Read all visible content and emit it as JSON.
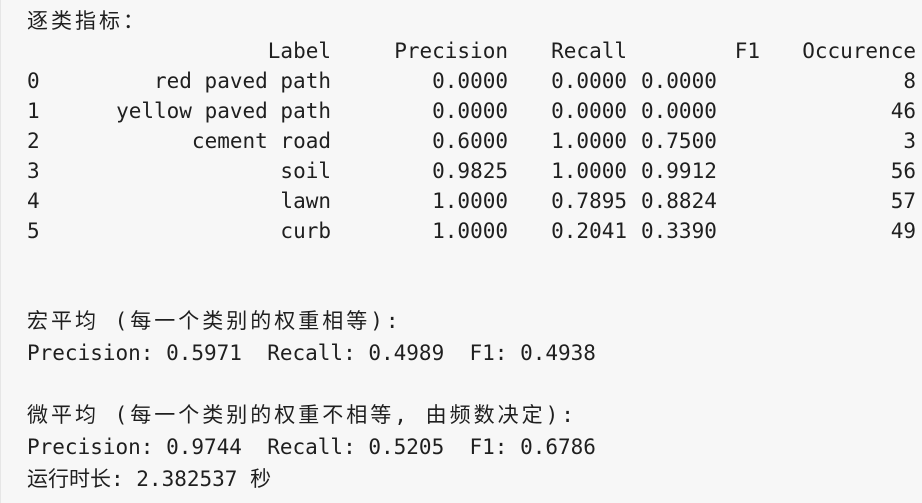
{
  "header": "逐类指标：",
  "table": {
    "columns": [
      "",
      "Label",
      "Precision",
      "Recall",
      "F1",
      "Occurence"
    ],
    "rows": [
      {
        "idx": "0",
        "label": "red paved path",
        "precision": "0.0000",
        "recall": "0.0000",
        "f1": "0.0000",
        "occurence": "8"
      },
      {
        "idx": "1",
        "label": "yellow paved path",
        "precision": "0.0000",
        "recall": "0.0000",
        "f1": "0.0000",
        "occurence": "46"
      },
      {
        "idx": "2",
        "label": "cement road",
        "precision": "0.6000",
        "recall": "1.0000",
        "f1": "0.7500",
        "occurence": "3"
      },
      {
        "idx": "3",
        "label": "soil",
        "precision": "0.9825",
        "recall": "1.0000",
        "f1": "0.9912",
        "occurence": "56"
      },
      {
        "idx": "4",
        "label": "lawn",
        "precision": "1.0000",
        "recall": "0.7895",
        "f1": "0.8824",
        "occurence": "57"
      },
      {
        "idx": "5",
        "label": "curb",
        "precision": "1.0000",
        "recall": "0.2041",
        "f1": "0.3390",
        "occurence": "49"
      }
    ]
  },
  "macro": {
    "title": "宏平均 (每一个类别的权重相等):",
    "values": "Precision: 0.5971  Recall: 0.4989  F1: 0.4938"
  },
  "micro": {
    "title": "微平均 (每一个类别的权重不相等, 由频数决定):",
    "values": "Precision: 0.9744  Recall: 0.5205  F1: 0.6786"
  },
  "runtime": "运行时长: 2.382537 秒"
}
